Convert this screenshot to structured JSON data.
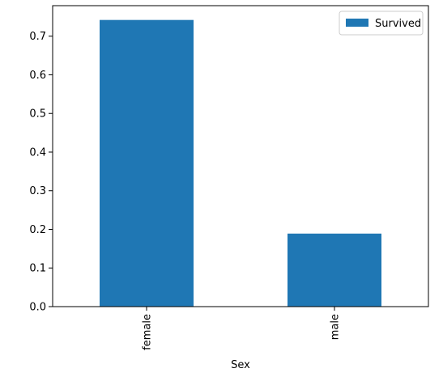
{
  "chart_data": {
    "type": "bar",
    "categories": [
      "female",
      "male"
    ],
    "series": [
      {
        "name": "Survived",
        "values": [
          0.742,
          0.189
        ]
      }
    ],
    "title": "",
    "xlabel": "Sex",
    "ylabel": "",
    "ylim": [
      0,
      0.779
    ],
    "yticks": [
      0.0,
      0.1,
      0.2,
      0.3,
      0.4,
      0.5,
      0.6,
      0.7
    ],
    "ytick_labels": [
      "0.0",
      "0.1",
      "0.2",
      "0.3",
      "0.4",
      "0.5",
      "0.6",
      "0.7"
    ],
    "xtick_rotation": "vertical",
    "grid": false,
    "legend": {
      "placement": "top-right",
      "entries": [
        "Survived"
      ]
    },
    "colors": {
      "bar": "#1f77b4",
      "axis": "#000000",
      "legend_border": "#cccccc"
    }
  }
}
